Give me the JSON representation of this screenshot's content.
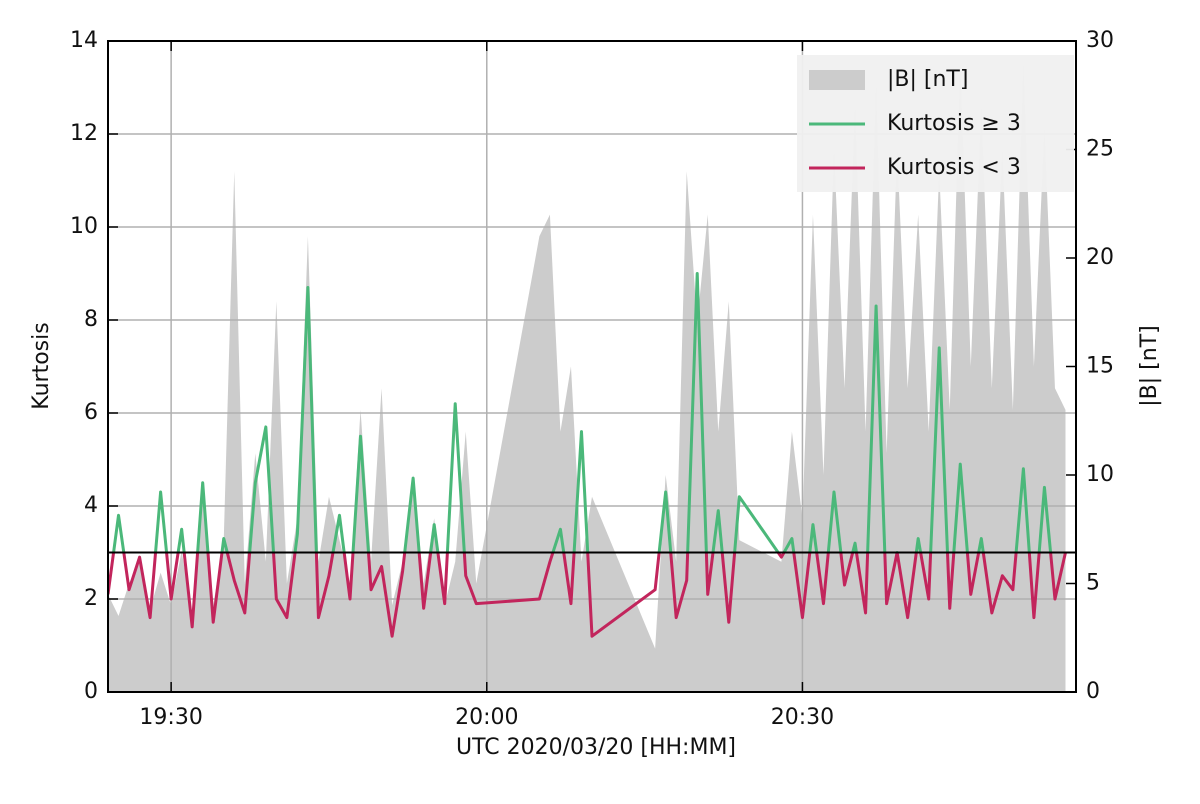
{
  "chart_data": {
    "type": "line",
    "xlabel": "UTC 2020/03/20 [HH:MM]",
    "ylabel": "Kurtosis",
    "y2label": "|B| [nT]",
    "x": [
      "19:24",
      "19:25",
      "19:26",
      "19:27",
      "19:28",
      "19:29",
      "19:30",
      "19:31",
      "19:32",
      "19:33",
      "19:34",
      "19:35",
      "19:36",
      "19:37",
      "19:38",
      "19:39",
      "19:40",
      "19:41",
      "19:42",
      "19:43",
      "19:44",
      "19:45",
      "19:46",
      "19:47",
      "19:48",
      "19:49",
      "19:50",
      "19:51",
      "19:52",
      "19:53",
      "19:54",
      "19:55",
      "19:56",
      "19:57",
      "19:58",
      "19:59",
      "20:05",
      "20:06",
      "20:07",
      "20:08",
      "20:09",
      "20:10",
      "20:16",
      "20:17",
      "20:18",
      "20:19",
      "20:20",
      "20:21",
      "20:22",
      "20:23",
      "20:24",
      "20:28",
      "20:29",
      "20:30",
      "20:31",
      "20:32",
      "20:33",
      "20:34",
      "20:35",
      "20:36",
      "20:37",
      "20:38",
      "20:39",
      "20:40",
      "20:41",
      "20:42",
      "20:43",
      "20:44",
      "20:45",
      "20:46",
      "20:47",
      "20:48",
      "20:49",
      "20:50",
      "20:51",
      "20:52",
      "20:53",
      "20:54",
      "20:55"
    ],
    "xlim": [
      "19:24",
      "20:56"
    ],
    "xticks": [
      "19:30",
      "20:00",
      "20:30"
    ],
    "ylim": [
      0,
      14
    ],
    "yticks": [
      0,
      2,
      4,
      6,
      8,
      10,
      12,
      14
    ],
    "y2lim": [
      0,
      30
    ],
    "y2ticks": [
      0,
      5,
      10,
      15,
      20,
      25,
      30
    ],
    "grid": true,
    "legend": "upper right",
    "series": [
      {
        "name": "|B| [nT]",
        "color": "#cccccc",
        "axis": "y2",
        "type": "area",
        "values": [
          4.5,
          3.5,
          5,
          6,
          3.8,
          5.5,
          4,
          6.5,
          3.5,
          9,
          4,
          7,
          24,
          5,
          11,
          6,
          18,
          5,
          8,
          21,
          6,
          9,
          7,
          5,
          13,
          6,
          14,
          4,
          6,
          10,
          5,
          8,
          4,
          6,
          12,
          5,
          21,
          22,
          12,
          15,
          6,
          9,
          2,
          10,
          6,
          24,
          17,
          22,
          12,
          18,
          7,
          6,
          12,
          8,
          22,
          10,
          25,
          14,
          27,
          12,
          28,
          11,
          25,
          14,
          22,
          12,
          24,
          13,
          29,
          15,
          27,
          14,
          25,
          13,
          29,
          15,
          26,
          14,
          13
        ]
      },
      {
        "name": "Kurtosis",
        "type": "line",
        "threshold": 3,
        "above": {
          "name": "Kurtosis ≥ 3",
          "color": "#4bb87a"
        },
        "below": {
          "name": "Kurtosis < 3",
          "color": "#c2255c"
        },
        "values": [
          2.1,
          3.8,
          2.2,
          2.9,
          1.6,
          4.3,
          2.0,
          3.5,
          1.4,
          4.5,
          1.5,
          3.3,
          2.4,
          1.7,
          4.5,
          5.7,
          2.0,
          1.6,
          3.4,
          8.7,
          1.6,
          2.5,
          3.8,
          2.0,
          5.5,
          2.2,
          2.7,
          1.2,
          2.6,
          4.6,
          1.8,
          3.6,
          1.9,
          6.2,
          2.5,
          1.9,
          2.0,
          2.8,
          3.5,
          1.9,
          5.6,
          1.2,
          2.2,
          4.3,
          1.6,
          2.4,
          9.0,
          2.1,
          3.9,
          1.5,
          4.2,
          2.9,
          3.3,
          1.6,
          3.6,
          1.9,
          4.3,
          2.3,
          3.2,
          1.7,
          8.3,
          1.9,
          3.0,
          1.6,
          3.3,
          2.0,
          7.4,
          1.8,
          4.9,
          2.1,
          3.3,
          1.7,
          2.5,
          2.2,
          4.8,
          1.6,
          4.4,
          2.0,
          3.0
        ]
      }
    ]
  }
}
